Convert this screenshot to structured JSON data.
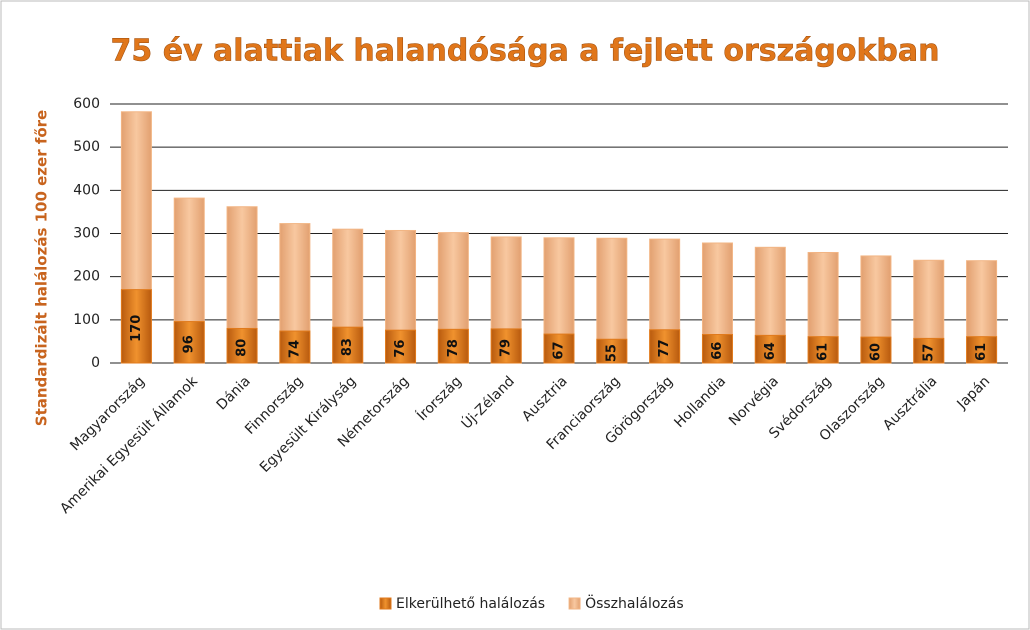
{
  "chart_data": {
    "type": "bar",
    "title": "75 év alattiak halandósága a fejlett országokban",
    "y_label": "Standardizált halálozás 100 ezer főre",
    "categories": [
      "Magyarország",
      "Amerikai Egyesült Államok",
      "Dánia",
      "Finnország",
      "Egyesült Királyság",
      "Németország",
      "Írország",
      "Új-Zéland",
      "Ausztria",
      "Franciaország",
      "Görögország",
      "Hollandia",
      "Norvégia",
      "Svédország",
      "Olaszország",
      "Ausztrália",
      "Japán"
    ],
    "series": [
      {
        "name": "Elkerülhető halálozás",
        "color": "#e07a1c",
        "values": [
          170,
          96,
          80,
          74,
          83,
          76,
          78,
          79,
          67,
          55,
          77,
          66,
          64,
          61,
          60,
          57,
          61
        ]
      },
      {
        "name": "Összhalálozás",
        "color": "#f2b584",
        "values": [
          582,
          382,
          362,
          323,
          310,
          307,
          302,
          292,
          290,
          289,
          287,
          278,
          268,
          256,
          248,
          238,
          237
        ]
      }
    ],
    "ylim": [
      0,
      600
    ],
    "yticks": [
      0,
      100,
      200,
      300,
      400,
      500,
      600
    ],
    "overlap": true,
    "legend": "bottom"
  }
}
